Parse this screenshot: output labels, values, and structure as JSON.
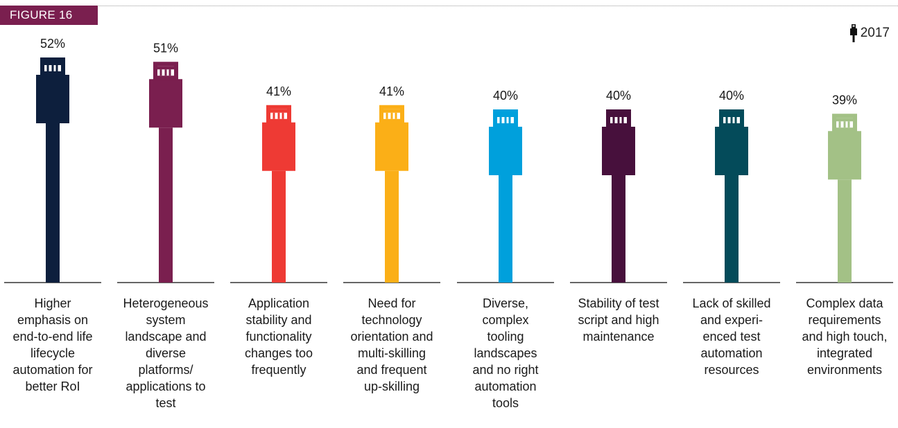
{
  "figure_label": "FIGURE 16",
  "legend": {
    "icon": "usb-connector-icon",
    "label": "2017"
  },
  "chart_data": {
    "type": "bar",
    "categories": [
      "Higher emphasis on end-to-end life lifecycle automation for better RoI",
      "Heterogeneous system landscape and diverse platforms/ applications to test",
      "Application stability and functionality changes too frequently",
      "Need for technology orientation and multi-skilling and frequent up-skilling",
      "Diverse, complex tooling landscapes and no right automation tools",
      "Stability of test script and high maintenance",
      "Lack of skilled and experi-enced test automation resources",
      "Complex data requirements and high touch, integrated environments"
    ],
    "category_lines": [
      [
        "Higher",
        "emphasis on",
        "end-to-end life",
        "lifecycle",
        "automation for",
        "better RoI"
      ],
      [
        "Heterogeneous",
        "system",
        "landscape and",
        "diverse",
        "platforms/",
        "applications to",
        "test"
      ],
      [
        "Application",
        "stability and",
        "functionality",
        "changes too",
        "frequently"
      ],
      [
        "Need for",
        "technology",
        "orientation and",
        "multi-skilling",
        "and frequent",
        "up-skilling"
      ],
      [
        "Diverse,",
        "complex",
        "tooling",
        "landscapes",
        "and no right",
        "automation",
        "tools"
      ],
      [
        "Stability of test",
        "script and high",
        "maintenance"
      ],
      [
        "Lack of skilled",
        "and experi-",
        "enced test",
        "automation",
        "resources"
      ],
      [
        "Complex data",
        "requirements",
        "and high touch,",
        "integrated",
        "environments"
      ]
    ],
    "series": [
      {
        "name": "2017",
        "values": [
          52,
          51,
          41,
          41,
          40,
          40,
          40,
          39
        ]
      }
    ],
    "value_labels": [
      "52%",
      "51%",
      "41%",
      "41%",
      "40%",
      "40%",
      "40%",
      "39%"
    ],
    "unit": "%",
    "colors": [
      "#0d1f3d",
      "#7a1f4f",
      "#ee3a34",
      "#fbaf17",
      "#00a0dc",
      "#47103c",
      "#044b5a",
      "#a3c186"
    ],
    "grid": false,
    "legend_position": "top-right"
  }
}
